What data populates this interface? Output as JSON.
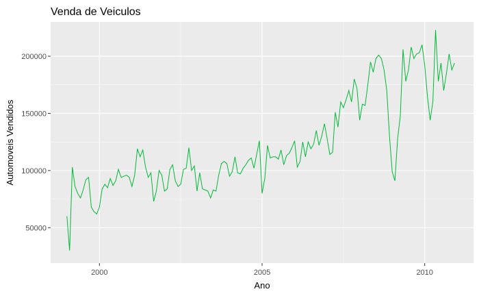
{
  "chart_data": {
    "type": "line",
    "title": "Venda de Veiculos",
    "xlabel": "Ano",
    "ylabel": "Automoveis Vendidos",
    "xlim": [
      1998.5,
      2011.5
    ],
    "ylim": [
      19000,
      230000
    ],
    "x_ticks": [
      2000,
      2005,
      2010
    ],
    "x_tick_labels": [
      "2000",
      "2005",
      "2010"
    ],
    "y_ticks": [
      50000,
      100000,
      150000,
      200000
    ],
    "y_tick_labels": [
      "50000",
      "100000",
      "150000",
      "200000"
    ],
    "grid": true,
    "legend": "none",
    "colors": {
      "panel": "#EBEBEB",
      "grid": "#FFFFFF",
      "line": "#00BA38"
    },
    "series": [
      {
        "x": [
          1999.0,
          1999.083,
          1999.167,
          1999.25,
          1999.333,
          1999.417,
          1999.5,
          1999.583,
          1999.667,
          1999.75,
          1999.833,
          1999.917,
          2000.0,
          2000.083,
          2000.167,
          2000.25,
          2000.333,
          2000.417,
          2000.5,
          2000.583,
          2000.667,
          2000.75,
          2000.833,
          2000.917,
          2001.0,
          2001.083,
          2001.167,
          2001.25,
          2001.333,
          2001.417,
          2001.5,
          2001.583,
          2001.667,
          2001.75,
          2001.833,
          2001.917,
          2002.0,
          2002.083,
          2002.167,
          2002.25,
          2002.333,
          2002.417,
          2002.5,
          2002.583,
          2002.667,
          2002.75,
          2002.833,
          2002.917,
          2003.0,
          2003.083,
          2003.167,
          2003.25,
          2003.333,
          2003.417,
          2003.5,
          2003.583,
          2003.667,
          2003.75,
          2003.833,
          2003.917,
          2004.0,
          2004.083,
          2004.167,
          2004.25,
          2004.333,
          2004.417,
          2004.5,
          2004.583,
          2004.667,
          2004.75,
          2004.833,
          2004.917,
          2005.0,
          2005.083,
          2005.167,
          2005.25,
          2005.333,
          2005.417,
          2005.5,
          2005.583,
          2005.667,
          2005.75,
          2005.833,
          2005.917,
          2006.0,
          2006.083,
          2006.167,
          2006.25,
          2006.333,
          2006.417,
          2006.5,
          2006.583,
          2006.667,
          2006.75,
          2006.833,
          2006.917,
          2007.0,
          2007.083,
          2007.167,
          2007.25,
          2007.333,
          2007.417,
          2007.5,
          2007.583,
          2007.667,
          2007.75,
          2007.833,
          2007.917,
          2008.0,
          2008.083,
          2008.167,
          2008.25,
          2008.333,
          2008.417,
          2008.5,
          2008.583,
          2008.667,
          2008.75,
          2008.833,
          2008.917,
          2009.0,
          2009.083,
          2009.167,
          2009.25,
          2009.333,
          2009.417,
          2009.5,
          2009.583,
          2009.667,
          2009.75,
          2009.833,
          2009.917,
          2010.0,
          2010.083,
          2010.167,
          2010.25,
          2010.333,
          2010.417,
          2010.5,
          2010.583,
          2010.667,
          2010.75,
          2010.833,
          2010.917
        ],
        "values": [
          60000,
          30000,
          103000,
          86000,
          80000,
          76000,
          83000,
          92000,
          94000,
          68000,
          64000,
          62000,
          68000,
          84000,
          88000,
          85000,
          93000,
          87000,
          91000,
          101000,
          94000,
          95000,
          96000,
          94000,
          86000,
          96000,
          119000,
          112000,
          118000,
          103000,
          94000,
          98000,
          73000,
          82000,
          100000,
          96000,
          82000,
          84000,
          101000,
          105000,
          91000,
          86000,
          88000,
          101000,
          102000,
          120000,
          100000,
          104000,
          82000,
          98000,
          84000,
          83000,
          82000,
          76000,
          83000,
          82000,
          96000,
          106000,
          108000,
          106000,
          95000,
          99000,
          112000,
          98000,
          97000,
          102000,
          105000,
          109000,
          111000,
          102000,
          114000,
          126000,
          80000,
          93000,
          122000,
          111000,
          112000,
          112000,
          110000,
          118000,
          105000,
          113000,
          115000,
          120000,
          126000,
          103000,
          108000,
          125000,
          112000,
          125000,
          119000,
          123000,
          135000,
          122000,
          130000,
          141000,
          128000,
          114000,
          116000,
          151000,
          138000,
          160000,
          155000,
          162000,
          170000,
          160000,
          180000,
          172000,
          144000,
          158000,
          157000,
          175000,
          195000,
          186000,
          198000,
          201000,
          198000,
          188000,
          170000,
          130000,
          99000,
          91000,
          128000,
          148000,
          206000,
          178000,
          188000,
          208000,
          198000,
          202000,
          203000,
          210000,
          192000,
          165000,
          144000,
          160000,
          223000,
          178000,
          194000,
          170000,
          185000,
          202000,
          188000,
          194000
        ]
      }
    ]
  }
}
